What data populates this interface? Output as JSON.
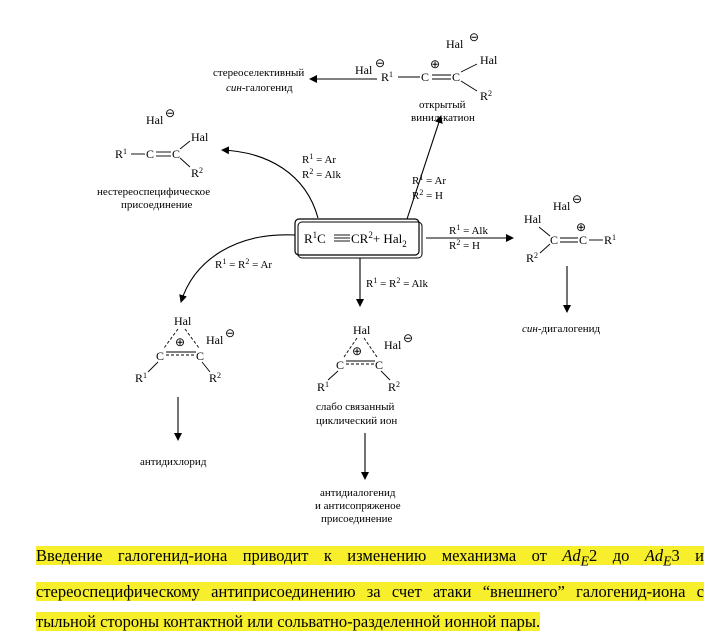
{
  "center": {
    "r1c": "R",
    "c_mid": "C",
    "cr2": "CR",
    "plus_hal": "+ Hal",
    "sub2": "2",
    "sup1": "1",
    "sup2": "2"
  },
  "labels": {
    "hal": "Hal",
    "r1": "R",
    "r2": "R",
    "sup1": "1",
    "sup2": "2",
    "c": "C",
    "minus": "⊖",
    "plus": "⊕"
  },
  "conditions": {
    "top": [
      "R1 = Ar",
      "R2 = H"
    ],
    "upper_left": [
      "R1 = Ar",
      "R2 = Alk"
    ],
    "right": [
      "R1 = Alk",
      "R2 = H"
    ],
    "lower_left": "R1 = R2 = Ar",
    "down": "R1 = R2 = Alk"
  },
  "captions": {
    "stereoselective_1": "стереоселективный",
    "stereoselective_2_italic": "син",
    "stereoselective_2_rest": "-галогенид",
    "vinyl_cation_1": "открытый",
    "vinyl_cation_2": "винил-катион",
    "nonstereo_1": "нестереоспецифическое",
    "nonstereo_2": "присоединение",
    "syn_dihalide_italic": "син",
    "syn_dihalide_rest": "-дигалогенид",
    "weak_cyclic_1": "слабо связанный",
    "weak_cyclic_2": "циклический ион",
    "antidichloride": "антидихлорид",
    "antidihalide_1": "антидиалогенид",
    "antidihalide_2": "и антисопряженое",
    "antidihalide_3": "присоединение"
  },
  "paragraph": {
    "part1": "Введение галогенид-иона приводит к изменению механизма от ",
    "ad": "Ad",
    "sub_e": "E",
    "two": "2",
    "mid": " до ",
    "three": "3",
    "part2": " и стереоспецифическому антиприсоединению за счет атаки “внешнего” галогенид-иона с тыльной стороны контактной или сольватно-разделенной ионной пары.",
    "highlight_color": "#f7ef2c"
  }
}
